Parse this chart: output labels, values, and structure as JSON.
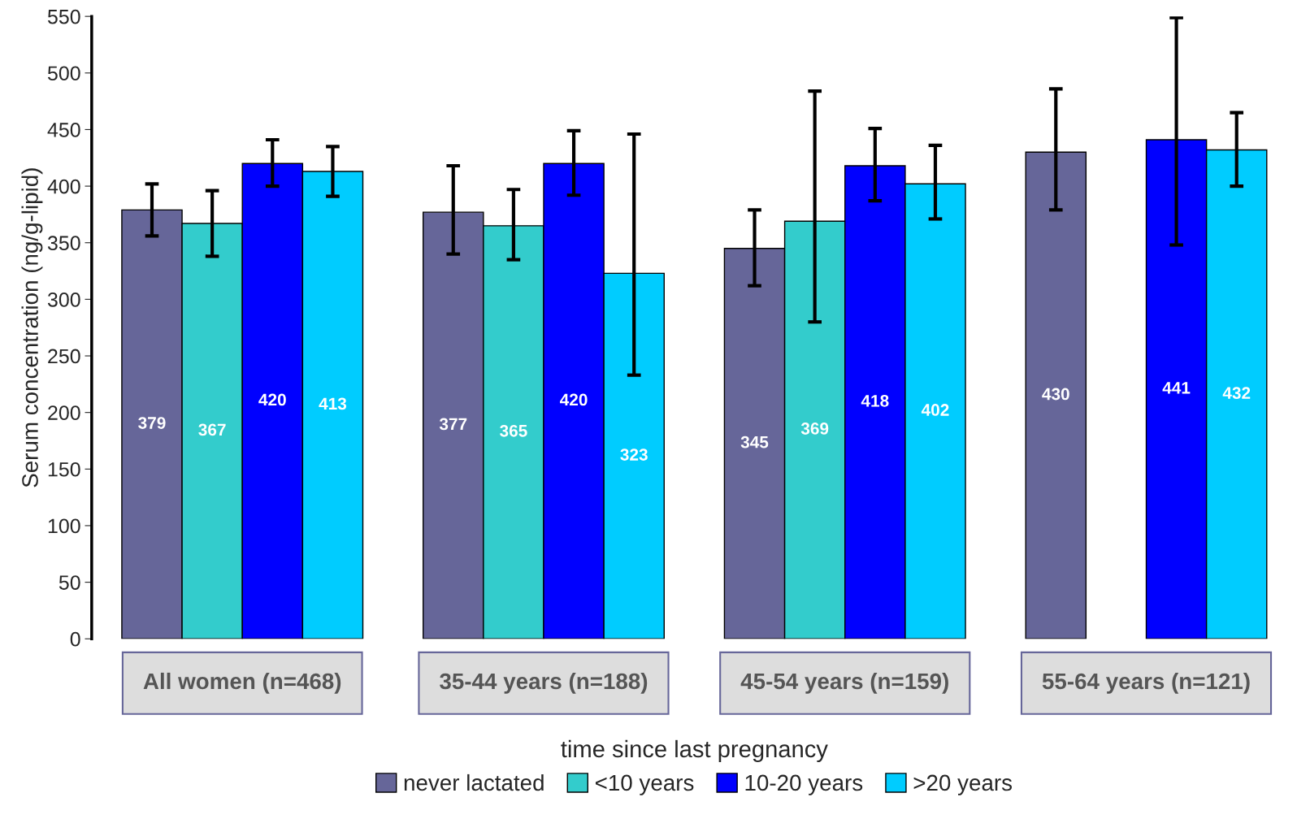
{
  "chart_data": {
    "type": "bar",
    "ylabel": "Serum concentration (ng/g-lipid)",
    "legend_title": "time since last pregnancy",
    "categories": [
      "All women (n=468)",
      "35-44 years (n=188)",
      "45-54 years (n=159)",
      "55-64 years (n=121)"
    ],
    "series": [
      {
        "name": "never lactated",
        "color": "#666699",
        "values": [
          379,
          377,
          345,
          430
        ],
        "errors": [
          [
            356,
            402
          ],
          [
            340,
            418
          ],
          [
            312,
            379
          ],
          [
            379,
            486
          ]
        ]
      },
      {
        "name": "<10 years",
        "color": "#33cccc",
        "values": [
          367,
          365,
          369,
          null
        ],
        "errors": [
          [
            338,
            396
          ],
          [
            335,
            397
          ],
          [
            280,
            484
          ],
          null
        ]
      },
      {
        "name": "10-20 years",
        "color": "#0000ff",
        "values": [
          420,
          420,
          418,
          441
        ],
        "errors": [
          [
            400,
            441
          ],
          [
            392,
            449
          ],
          [
            387,
            451
          ],
          [
            348,
            549
          ]
        ]
      },
      {
        "name": ">20 years",
        "color": "#00ccff",
        "values": [
          413,
          323,
          402,
          432
        ],
        "errors": [
          [
            391,
            435
          ],
          [
            233,
            446
          ],
          [
            371,
            436
          ],
          [
            400,
            465
          ]
        ]
      }
    ],
    "ylim": [
      0,
      550
    ],
    "yticks": [
      0,
      50,
      100,
      150,
      200,
      250,
      300,
      350,
      400,
      450,
      500,
      550
    ],
    "data_labels": true,
    "grid": false,
    "legend": "bottom"
  }
}
